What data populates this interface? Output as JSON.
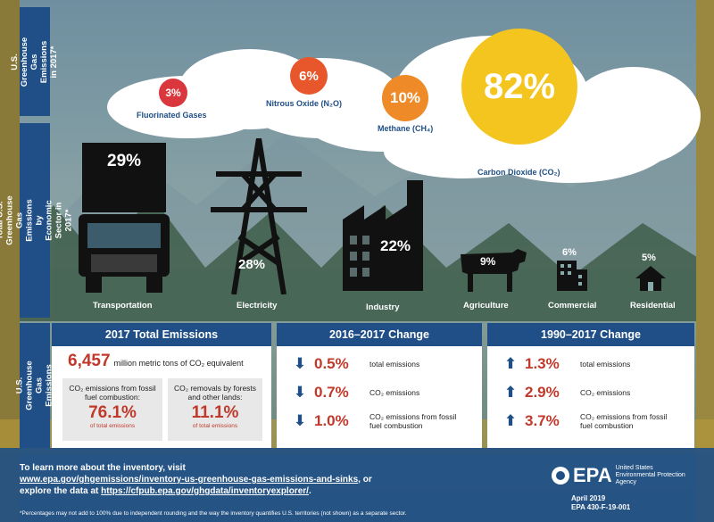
{
  "side_labels": {
    "gas": "U.S. Greenhouse Gas Emissions in 2017*",
    "sector": "Total U.S. Greenhouse Gas Emissions by Economic Sector in 2017*",
    "bottom": "U.S. Greenhouse Gas Emissions"
  },
  "gases": [
    {
      "pct": "3%",
      "label": "Fluorinated Gases"
    },
    {
      "pct": "6%",
      "label": "Nitrous Oxide (N₂O)"
    },
    {
      "pct": "10%",
      "label": "Methane (CH₄)"
    },
    {
      "pct": "82%",
      "label": "Carbon Dioxide (CO₂)"
    }
  ],
  "sectors": [
    {
      "pct": "29%",
      "label": "Transportation"
    },
    {
      "pct": "28%",
      "label": "Electricity"
    },
    {
      "pct": "22%",
      "label": "Industry"
    },
    {
      "pct": "9%",
      "label": "Agriculture"
    },
    {
      "pct": "6%",
      "label": "Commercial"
    },
    {
      "pct": "5%",
      "label": "Residential"
    }
  ],
  "total": {
    "title": "2017 Total Emissions",
    "amount": "6,457",
    "amount_unit": "million metric tons of CO₂ equivalent",
    "box1_label": "CO₂ emissions from fossil fuel combustion:",
    "box1_value": "76.1%",
    "box1_sub": "of total emissions",
    "box2_label": "CO₂ removals by forests and other lands:",
    "box2_value": "11.1%",
    "box2_sub": "of total emissions"
  },
  "change_2016": {
    "title": "2016–2017 Change",
    "rows": [
      {
        "value": "0.5%",
        "desc": "total emissions"
      },
      {
        "value": "0.7%",
        "desc": "CO₂ emissions"
      },
      {
        "value": "1.0%",
        "desc": "CO₂ emissions from fossil fuel combustion"
      }
    ]
  },
  "change_1990": {
    "title": "1990–2017 Change",
    "rows": [
      {
        "value": "1.3%",
        "desc": "total emissions"
      },
      {
        "value": "2.9%",
        "desc": "CO₂ emissions"
      },
      {
        "value": "3.7%",
        "desc": "CO₂ emissions from fossil fuel combustion"
      }
    ]
  },
  "footer": {
    "line1": "To learn more about the inventory, visit",
    "link1": "www.epa.gov/ghgemissions/inventory-us-greenhouse-gas-emissions-and-sinks",
    "line2_suffix": ", or",
    "line3_prefix": "explore the data at ",
    "link2": "https://cfpub.epa.gov/ghgdata/inventoryexplorer/",
    "line3_suffix": ".",
    "footnote": "*Percentages may not add to 100% due to independent rounding and the way the inventory quantifies U.S. territories (not shown) as a separate sector.",
    "epa_logo": "EPA",
    "agency": "United States Environmental Protection Agency",
    "date": "April 2019",
    "doc_id": "EPA 430-F-19-001"
  },
  "colors": {
    "navy": "#1f4f86",
    "red": "#c0392b",
    "orange": "#e8792b",
    "yellow": "#f5c51f"
  }
}
